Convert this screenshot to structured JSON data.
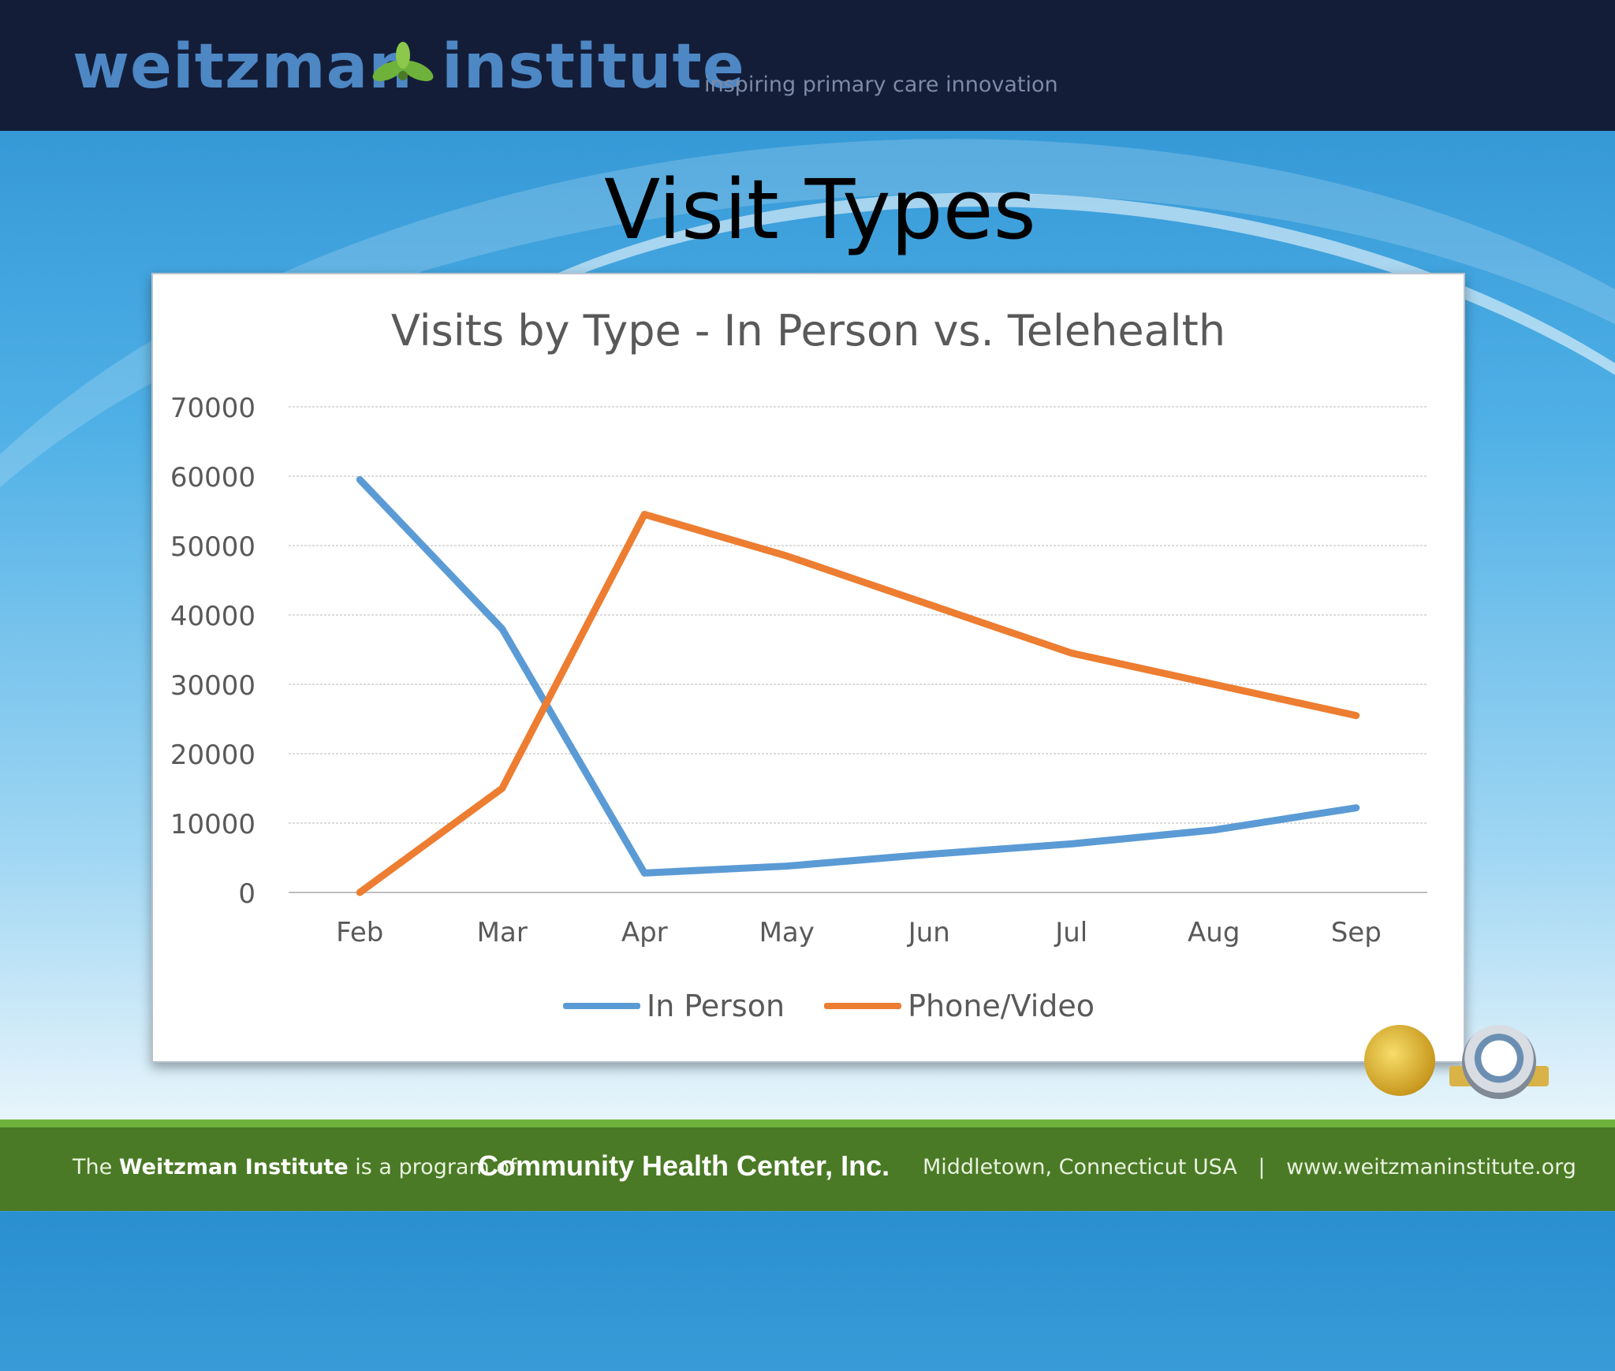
{
  "header": {
    "logo_word1": "weitzman",
    "logo_word2": "institute",
    "tagline": "inspiring primary care innovation"
  },
  "slide_title": "Visit Types",
  "chart_data": {
    "type": "line",
    "title": "Visits by Type - In Person vs. Telehealth",
    "xlabel": "",
    "ylabel": "",
    "categories": [
      "Feb",
      "Mar",
      "Apr",
      "May",
      "Jun",
      "Jul",
      "Aug",
      "Sep"
    ],
    "ylim": [
      0,
      70000
    ],
    "yticks": [
      0,
      10000,
      20000,
      30000,
      40000,
      50000,
      60000,
      70000
    ],
    "grid": true,
    "legend_position": "bottom",
    "series": [
      {
        "name": "In Person",
        "color": "#5b9bd5",
        "values": [
          59500,
          38000,
          2800,
          3800,
          5500,
          7000,
          9000,
          12200
        ]
      },
      {
        "name": "Phone/Video",
        "color": "#ed7d31",
        "values": [
          0,
          15000,
          54500,
          48500,
          41500,
          34500,
          30000,
          25500
        ]
      }
    ]
  },
  "footer": {
    "left_prefix": "The",
    "left_org": "Weitzman Institute",
    "left_suffix": "is a program of",
    "parent_org": "Community Health Center, Inc.",
    "location": "Middletown, Connecticut USA",
    "separator": "|",
    "website": "www.weitzmaninstitute.org"
  }
}
